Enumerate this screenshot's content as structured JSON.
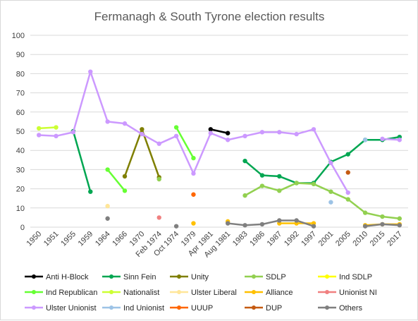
{
  "chart_data": {
    "type": "line",
    "title": "Fermanagh & South Tyrone election results",
    "categories": [
      "1950",
      "1951",
      "1955",
      "1959",
      "1964",
      "1966",
      "1970",
      "Feb 1974",
      "Oct 1974",
      "1979",
      "Apr 1981",
      "Aug 1981",
      "1983",
      "1986",
      "1987",
      "1992",
      "1997",
      "2001",
      "2005",
      "2010",
      "2015",
      "2017"
    ],
    "ylim": [
      0,
      100
    ],
    "yticks": [
      0,
      10,
      20,
      30,
      40,
      50,
      60,
      70,
      80,
      90,
      100
    ],
    "grid": true,
    "legend_position": "bottom",
    "series": [
      {
        "name": "Anti H-Block",
        "color": "#000000",
        "values": [
          null,
          null,
          null,
          null,
          null,
          null,
          null,
          null,
          null,
          null,
          51,
          49,
          null,
          null,
          null,
          null,
          null,
          null,
          null,
          null,
          null,
          null
        ]
      },
      {
        "name": "Sinn Fein",
        "color": "#00a651",
        "values": [
          null,
          null,
          50,
          18.5,
          null,
          null,
          null,
          null,
          null,
          null,
          null,
          null,
          34.5,
          27,
          26.5,
          23,
          23,
          34,
          38,
          45.5,
          45.5,
          47
        ]
      },
      {
        "name": "Unity",
        "color": "#7f7f00",
        "values": [
          null,
          null,
          null,
          null,
          null,
          26.5,
          51,
          26,
          null,
          null,
          null,
          null,
          null,
          null,
          null,
          null,
          null,
          null,
          null,
          null,
          null,
          null
        ]
      },
      {
        "name": "SDLP",
        "color": "#92d050",
        "values": [
          null,
          null,
          null,
          null,
          null,
          null,
          null,
          25,
          null,
          null,
          null,
          null,
          16.5,
          21.5,
          19,
          23,
          22.5,
          18.5,
          14.5,
          7.5,
          5.5,
          4.5
        ]
      },
      {
        "name": "Ind SDLP",
        "color": "#ffff00",
        "values": [
          null,
          null,
          null,
          null,
          null,
          null,
          null,
          null,
          null,
          null,
          null,
          null,
          null,
          null,
          null,
          null,
          null,
          null,
          null,
          null,
          null,
          null
        ]
      },
      {
        "name": "Ind Republican",
        "color": "#66ff33",
        "values": [
          null,
          null,
          null,
          null,
          30,
          19,
          null,
          null,
          52,
          36,
          null,
          null,
          null,
          null,
          null,
          null,
          null,
          null,
          null,
          null,
          null,
          null
        ]
      },
      {
        "name": "Nationalist",
        "color": "#ccff33",
        "values": [
          51.5,
          52,
          null,
          null,
          null,
          null,
          null,
          null,
          null,
          null,
          null,
          null,
          null,
          null,
          null,
          null,
          null,
          null,
          null,
          null,
          null,
          null
        ]
      },
      {
        "name": "Ulster Liberal",
        "color": "#ffe699",
        "values": [
          null,
          null,
          null,
          null,
          11,
          null,
          null,
          null,
          null,
          null,
          null,
          null,
          null,
          null,
          null,
          null,
          null,
          null,
          null,
          null,
          null,
          null
        ]
      },
      {
        "name": "Alliance",
        "color": "#ffc000",
        "values": [
          null,
          null,
          null,
          null,
          null,
          null,
          null,
          null,
          null,
          2,
          null,
          3,
          null,
          null,
          2,
          2,
          2,
          null,
          null,
          1,
          1.5,
          1.5
        ]
      },
      {
        "name": "Unionist NI",
        "color": "#f08080",
        "values": [
          null,
          null,
          null,
          null,
          null,
          null,
          null,
          5,
          null,
          null,
          null,
          null,
          null,
          null,
          null,
          null,
          null,
          null,
          null,
          null,
          null,
          null
        ]
      },
      {
        "name": "Ulster Unionist",
        "color": "#cc99ff",
        "values": [
          48,
          47.5,
          49.5,
          81,
          55,
          54,
          48.5,
          43.5,
          47.5,
          28,
          49,
          45.5,
          47.5,
          49.5,
          49.5,
          48.5,
          51,
          33.5,
          18,
          null,
          46,
          45.5
        ]
      },
      {
        "name": "Ind Unionist",
        "color": "#9dc3e6",
        "values": [
          null,
          null,
          null,
          null,
          null,
          null,
          null,
          null,
          null,
          null,
          null,
          null,
          null,
          null,
          null,
          null,
          null,
          13,
          null,
          45.5,
          null,
          null
        ]
      },
      {
        "name": "UUUP",
        "color": "#ff6600",
        "values": [
          null,
          null,
          null,
          null,
          null,
          null,
          null,
          null,
          null,
          17,
          null,
          null,
          null,
          null,
          null,
          null,
          null,
          null,
          null,
          null,
          null,
          null
        ]
      },
      {
        "name": "DUP",
        "color": "#c55a11",
        "values": [
          null,
          null,
          null,
          null,
          null,
          null,
          null,
          null,
          null,
          null,
          null,
          null,
          null,
          null,
          null,
          null,
          null,
          null,
          28.5,
          null,
          null,
          null
        ]
      },
      {
        "name": "Others",
        "color": "#7f7f7f",
        "values": [
          null,
          null,
          null,
          null,
          4.5,
          null,
          null,
          null,
          0.5,
          null,
          null,
          2,
          1,
          1.5,
          3.5,
          3.5,
          0.5,
          null,
          null,
          0.5,
          1.5,
          1
        ]
      }
    ]
  }
}
